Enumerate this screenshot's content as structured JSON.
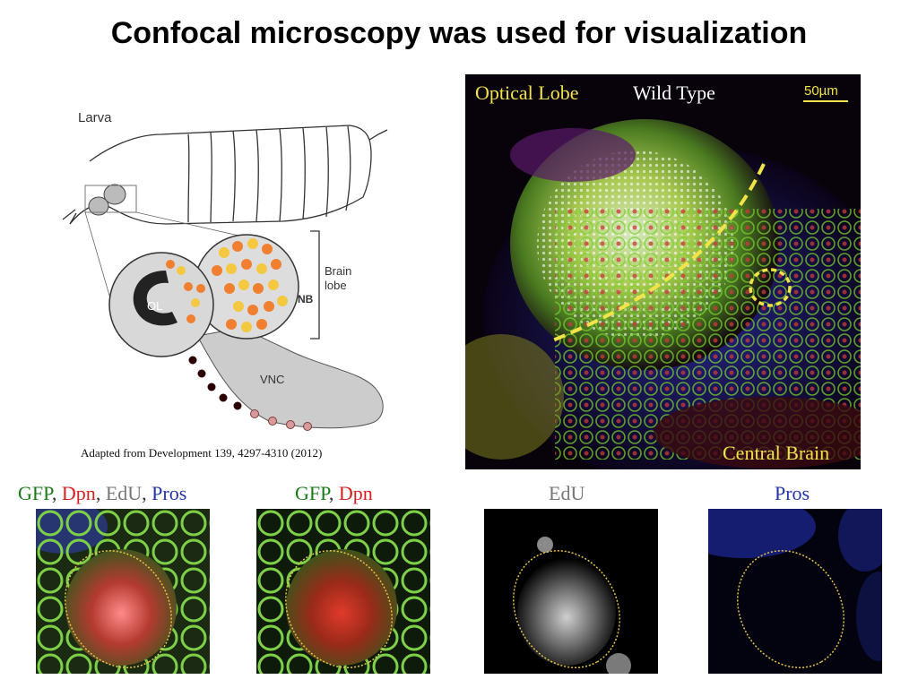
{
  "slide": {
    "title": "Confocal microscopy was used for visualization"
  },
  "diagram": {
    "larva_label": "Larva",
    "brain_lobe_label": "Brain\nlobe",
    "ol_label": "OL",
    "nb_label": "NB",
    "vnc_label": "VNC",
    "caption": "Adapted from Development 139, 4297-4310 (2012)"
  },
  "micrograph": {
    "label_optical_lobe": "Optical Lobe",
    "label_wild_type": "Wild Type",
    "scale_bar": "50µm",
    "label_central_brain": "Central Brain",
    "colors": {
      "yellow_label": "#f2e34a",
      "white_label": "#ffffff"
    }
  },
  "insets": [
    {
      "parts": [
        {
          "text": "GFP",
          "color": "#1a7a1a"
        },
        {
          "text": ", ",
          "color": "#333333"
        },
        {
          "text": "Dpn",
          "color": "#d42020"
        },
        {
          "text": ", ",
          "color": "#333333"
        },
        {
          "text": "EdU",
          "color": "#777777"
        },
        {
          "text": ", ",
          "color": "#333333"
        },
        {
          "text": "Pros",
          "color": "#2233aa"
        }
      ]
    },
    {
      "parts": [
        {
          "text": "GFP",
          "color": "#1a7a1a"
        },
        {
          "text": ", ",
          "color": "#333333"
        },
        {
          "text": "Dpn",
          "color": "#d42020"
        }
      ]
    },
    {
      "parts": [
        {
          "text": "EdU",
          "color": "#777777"
        }
      ]
    },
    {
      "parts": [
        {
          "text": "Pros",
          "color": "#2233aa"
        }
      ]
    }
  ]
}
